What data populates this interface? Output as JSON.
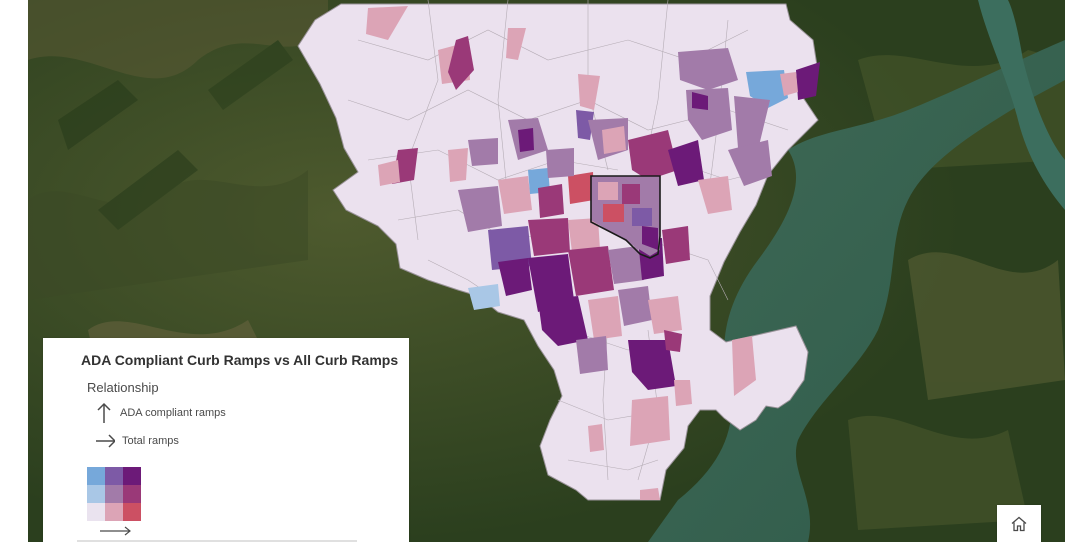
{
  "legend": {
    "title": "ADA Compliant Curb Ramps vs All Curb Ramps",
    "subtitle": "Relationship",
    "y_axis_label": "ADA compliant ramps",
    "x_axis_label": "Total ramps",
    "color_grid": [
      [
        "#76a8da",
        "#7d5aa6",
        "#6c1a78"
      ],
      [
        "#a9c7e6",
        "#a27ba9",
        "#9a3978"
      ],
      [
        "#eae3ef",
        "#dca4b6",
        "#cc5063"
      ]
    ]
  },
  "map": {
    "basemap": "satellite-imagery",
    "boundary_fill": "#ebe1ee",
    "boundary_stroke": "#9a9399",
    "highlight_outline": "#1a1a1a",
    "home_icon": "home-icon"
  }
}
